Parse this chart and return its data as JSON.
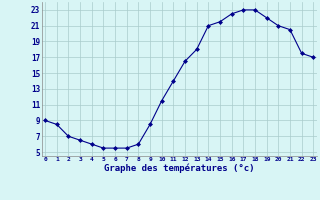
{
  "hours": [
    0,
    1,
    2,
    3,
    4,
    5,
    6,
    7,
    8,
    9,
    10,
    11,
    12,
    13,
    14,
    15,
    16,
    17,
    18,
    19,
    20,
    21,
    22,
    23
  ],
  "temps": [
    9,
    8.5,
    7,
    6.5,
    6,
    5.5,
    5.5,
    5.5,
    6,
    8.5,
    11.5,
    14,
    16.5,
    18,
    21,
    21.5,
    22.5,
    23,
    23,
    22,
    21,
    20.5,
    17.5,
    17
  ],
  "line_color": "#00008B",
  "marker": "D",
  "marker_size": 2,
  "bg_color": "#d8f5f5",
  "grid_color": "#aacccc",
  "xlabel": "Graphe des températures (°c)",
  "tick_color": "#00008B",
  "ylim": [
    4.5,
    24
  ],
  "xlim": [
    -0.3,
    23.3
  ],
  "yticks": [
    5,
    7,
    9,
    11,
    13,
    15,
    17,
    19,
    21,
    23
  ],
  "xticks": [
    0,
    1,
    2,
    3,
    4,
    5,
    6,
    7,
    8,
    9,
    10,
    11,
    12,
    13,
    14,
    15,
    16,
    17,
    18,
    19,
    20,
    21,
    22,
    23
  ],
  "xtick_labels": [
    "0",
    "1",
    "2",
    "3",
    "4",
    "5",
    "6",
    "7",
    "8",
    "9",
    "10",
    "11",
    "12",
    "13",
    "14",
    "15",
    "16",
    "17",
    "18",
    "19",
    "20",
    "21",
    "22",
    "23"
  ],
  "ytick_labels": [
    "5",
    "7",
    "9",
    "11",
    "13",
    "15",
    "17",
    "19",
    "21",
    "23"
  ]
}
